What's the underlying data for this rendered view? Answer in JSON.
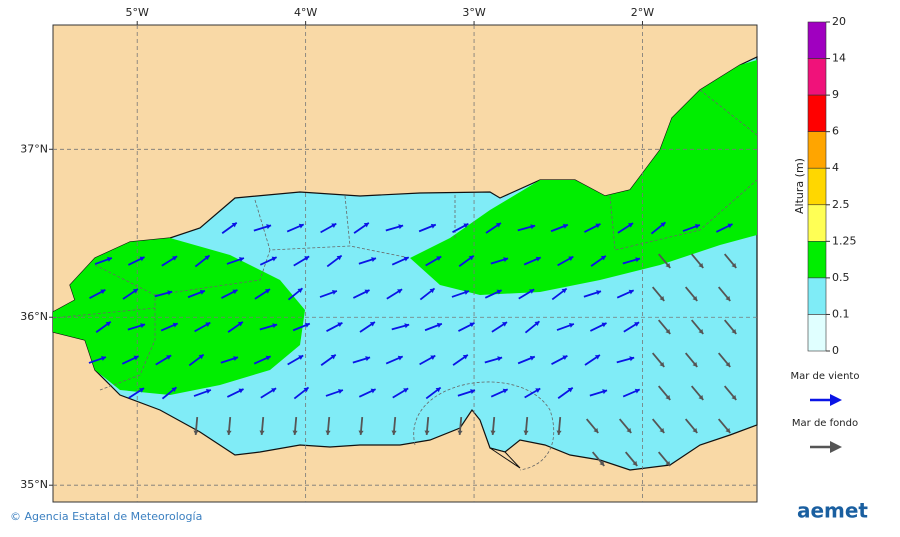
{
  "map": {
    "lon_ticks": [
      {
        "value": -5,
        "label": "5°W"
      },
      {
        "value": -4,
        "label": "4°W"
      },
      {
        "value": -3,
        "label": "3°W"
      },
      {
        "value": -2,
        "label": "2°W"
      }
    ],
    "lat_ticks": [
      {
        "value": 37,
        "label": "37°N"
      },
      {
        "value": 36,
        "label": "36°N"
      },
      {
        "value": 35,
        "label": "35°N"
      }
    ],
    "lon_range": [
      -5.5,
      -1.32
    ],
    "lat_range": [
      34.9,
      37.74
    ]
  },
  "colorbar": {
    "title": "Altura (m)",
    "levels": [
      20,
      14,
      9,
      6,
      4,
      2.5,
      1.25,
      0.5,
      0.1,
      0
    ],
    "colors": [
      "#a000c0",
      "#f0127a",
      "#ff0000",
      "#ffa500",
      "#ffd700",
      "#ffff55",
      "#00ee00",
      "#7fecf7",
      "#e0ffff"
    ]
  },
  "legend": [
    {
      "label": "Mar de viento",
      "color": "#0a14e6"
    },
    {
      "label": "Mar de fondo",
      "color": "#555555"
    }
  ],
  "footer": {
    "credit": "© Agencia Estatal de Meteorología",
    "logo": "aemet"
  }
}
